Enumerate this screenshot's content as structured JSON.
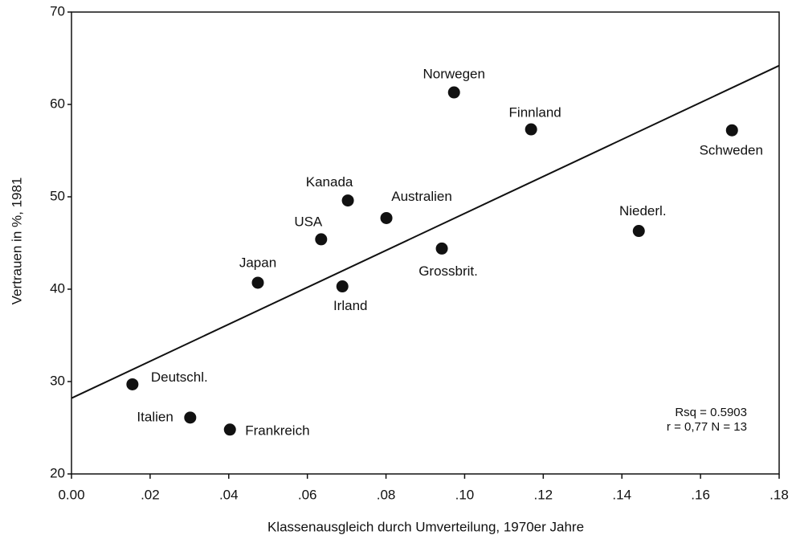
{
  "chart_data": {
    "type": "scatter",
    "x_label": "Klassenausgleich durch Umverteilung, 1970er Jahre",
    "y_label": "Vertrauen in %, 1981",
    "point_labels": [
      "Deutschl.",
      "Italien",
      "Frankreich",
      "Japan",
      "USA",
      "Irland",
      "Kanada",
      "Australien",
      "Grossbrit.",
      "Norwegen",
      "Finnland",
      "Niederl.",
      "Schweden"
    ],
    "x": [
      0.0155,
      0.0302,
      0.0403,
      0.0474,
      0.0635,
      0.0689,
      0.0703,
      0.0801,
      0.0942,
      0.0973,
      0.1169,
      0.1443,
      0.168
    ],
    "values": [
      29.7,
      26.1,
      24.8,
      40.7,
      45.4,
      40.3,
      49.6,
      47.7,
      44.4,
      61.3,
      57.3,
      46.3,
      57.2
    ],
    "color": "#111111",
    "fit_line": {
      "x": [
        0,
        0.18
      ],
      "y": [
        28.2,
        64.2
      ]
    },
    "annotations": [
      "Rsq = 0.5903",
      "r = 0,77  N = 13"
    ],
    "xlim": [
      0,
      0.18
    ],
    "xticks": [
      {
        "value": 0,
        "label": "0.00"
      },
      {
        "value": 0.02,
        "label": ".02"
      },
      {
        "value": 0.04,
        "label": ".04"
      },
      {
        "value": 0.06,
        "label": ".06"
      },
      {
        "value": 0.08,
        "label": ".08"
      },
      {
        "value": 0.1,
        "label": ".10"
      },
      {
        "value": 0.12,
        "label": ".12"
      },
      {
        "value": 0.14,
        "label": ".14"
      },
      {
        "value": 0.16,
        "label": ".16"
      },
      {
        "value": 0.18,
        "label": ".18"
      }
    ],
    "ylim": [
      20,
      70
    ],
    "yticks": [
      20,
      30,
      40,
      50,
      60,
      70
    ]
  }
}
